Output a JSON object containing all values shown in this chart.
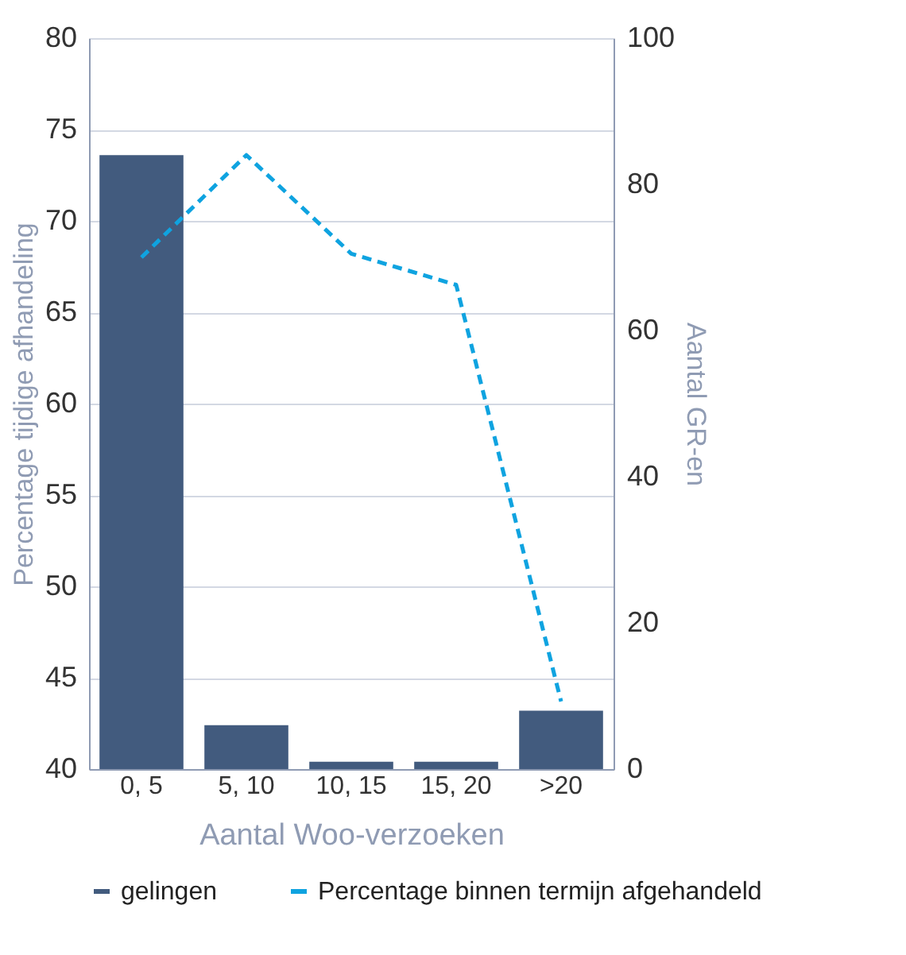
{
  "chart_data": {
    "type": "bar",
    "xlabel": "Aantal Woo-verzoeken",
    "ylabel": "Percentage tijdige afhandeling",
    "y2label": "Aantal GR-en",
    "categories": [
      "0, 5",
      "5, 10",
      "10, 15",
      "15, 20",
      ">20"
    ],
    "series": [
      {
        "name": "gelingen",
        "axis": "y2",
        "color": "#425b7e",
        "values": [
          84,
          6,
          1,
          1,
          8
        ]
      },
      {
        "name": "Percentage binnen termijn afgehandeld",
        "type": "line",
        "color": "#0fa3e0",
        "line_style": "dashed",
        "values": [
          68,
          73.6,
          68.2,
          66.5,
          43.7
        ]
      }
    ],
    "ylim": [
      40,
      80
    ],
    "yticks": [
      40,
      45,
      50,
      55,
      60,
      65,
      70,
      75,
      80
    ],
    "y2lim": [
      0,
      100
    ],
    "y2ticks": [
      0,
      20,
      40,
      60,
      80,
      100
    ],
    "grid": "y",
    "legend": "bottom"
  }
}
